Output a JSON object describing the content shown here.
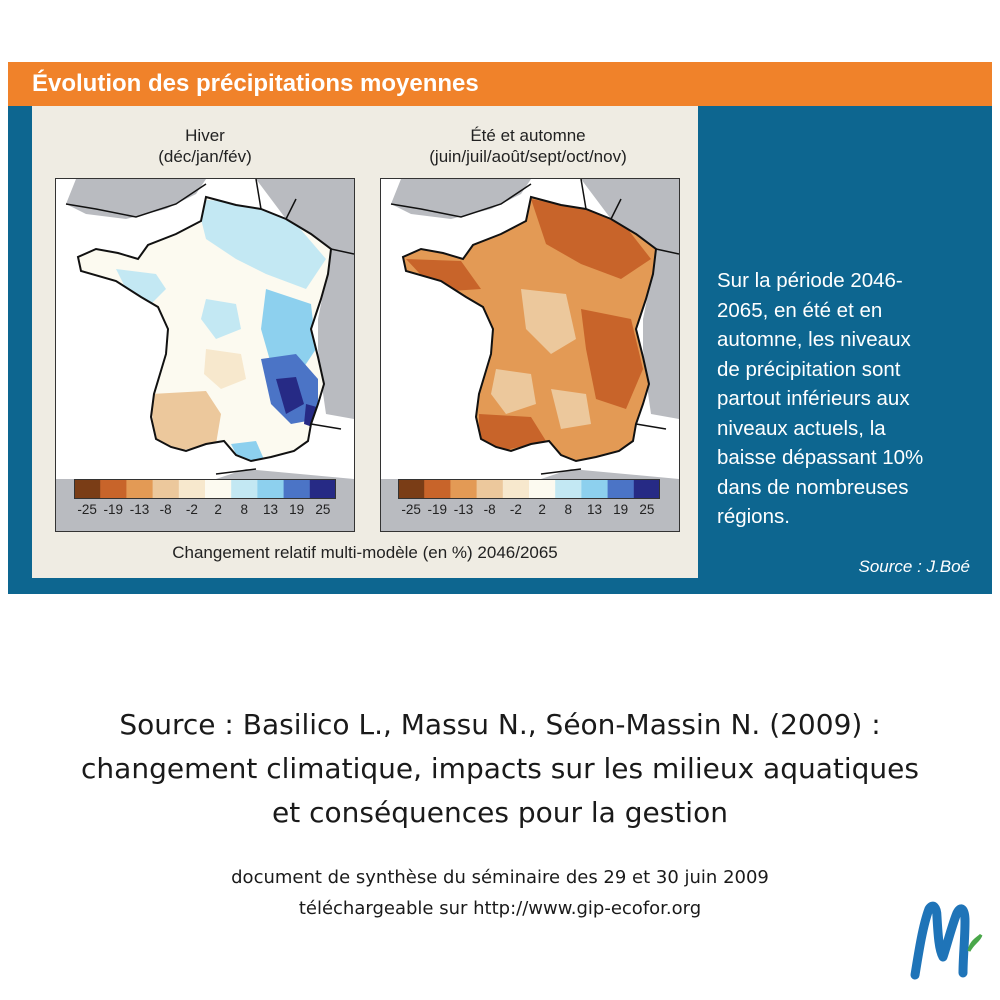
{
  "header": {
    "title": "Évolution des précipitations moyennes"
  },
  "maps": [
    {
      "id": "winter",
      "title_line1": "Hiver",
      "title_line2": "(déc/jan/fév)"
    },
    {
      "id": "summer",
      "title_line1": "Été et automne",
      "title_line2": "(juin/juil/août/sept/oct/nov)"
    }
  ],
  "colorbar": {
    "tick_labels": [
      "-25",
      "-19",
      "-13",
      "-8",
      "-2",
      "2",
      "8",
      "13",
      "19",
      "25"
    ],
    "colors": [
      "#7a3d16",
      "#c8642a",
      "#e39a55",
      "#ecc89c",
      "#f7e8cd",
      "#fcfaf0",
      "#c3e8f3",
      "#8dd0ee",
      "#4b74c6",
      "#262a85"
    ],
    "caption": "Changement relatif multi-modèle (en %) 2046/2065"
  },
  "side_panel": {
    "lines": [
      "Sur la période 2046-",
      "2065, en été et en",
      "automne, les niveaux",
      "de précipitation sont",
      "partout inférieurs aux",
      "niveaux actuels, la",
      "baisse dépassant 10%",
      "dans de nombreuses",
      "régions."
    ],
    "source": "Source  : J.Boé"
  },
  "citation": {
    "lines": [
      "Source : Basilico L., Massu N., Séon-Massin N. (2009) :",
      "changement climatique, impacts sur les milieux aquatiques",
      "et conséquences pour la gestion"
    ],
    "sub_lines": [
      "document de synthèse du séminaire des 29 et 30 juin 2009",
      "téléchargeable sur http://www.gip-ecofor.org"
    ]
  },
  "colors": {
    "orange_banner": "#f0822a",
    "blue_panel": "#0d6690",
    "figure_bg": "#efece3",
    "sea_land_gray": "#b9bbc0"
  },
  "logo": {
    "icon": "m-brand-logo-icon"
  }
}
